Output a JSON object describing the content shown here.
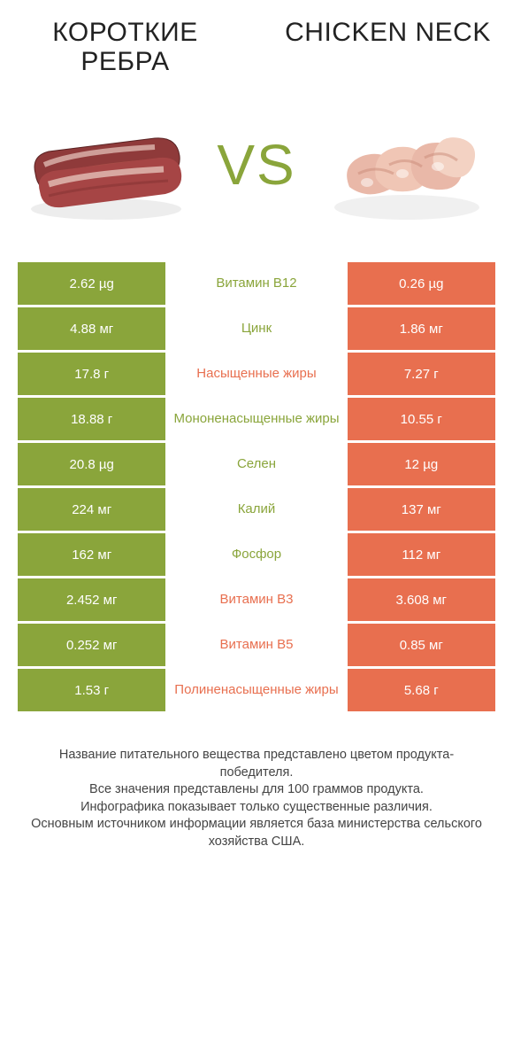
{
  "colors": {
    "left": "#8aa53b",
    "right": "#e86f4f",
    "vs": "#8aa53b",
    "mid_left_text": "#8aa53b",
    "mid_right_text": "#e86f4f"
  },
  "header": {
    "left_title": "КОРОТКИЕ РЕБРА",
    "right_title": "CHICKEN NECK",
    "vs": "VS"
  },
  "rows": [
    {
      "left": "2.62 µg",
      "mid": "Витамин B12",
      "right": "0.26 µg",
      "winner": "left"
    },
    {
      "left": "4.88 мг",
      "mid": "Цинк",
      "right": "1.86 мг",
      "winner": "left"
    },
    {
      "left": "17.8 г",
      "mid": "Насыщенные жиры",
      "right": "7.27 г",
      "winner": "right"
    },
    {
      "left": "18.88 г",
      "mid": "Мононенасыщенные жиры",
      "right": "10.55 г",
      "winner": "left"
    },
    {
      "left": "20.8 µg",
      "mid": "Селен",
      "right": "12 µg",
      "winner": "left"
    },
    {
      "left": "224 мг",
      "mid": "Калий",
      "right": "137 мг",
      "winner": "left"
    },
    {
      "left": "162 мг",
      "mid": "Фосфор",
      "right": "112 мг",
      "winner": "left"
    },
    {
      "left": "2.452 мг",
      "mid": "Витамин B3",
      "right": "3.608 мг",
      "winner": "right"
    },
    {
      "left": "0.252 мг",
      "mid": "Витамин B5",
      "right": "0.85 мг",
      "winner": "right"
    },
    {
      "left": "1.53 г",
      "mid": "Полиненасыщенные жиры",
      "right": "5.68 г",
      "winner": "right"
    }
  ],
  "footer": {
    "line1": "Название питательного вещества представлено цветом продукта-победителя.",
    "line2": "Все значения представлены для 100 граммов продукта.",
    "line3": "Инфографика показывает только существенные различия.",
    "line4": "Основным источником информации является база министерства сельского хозяйства США."
  }
}
